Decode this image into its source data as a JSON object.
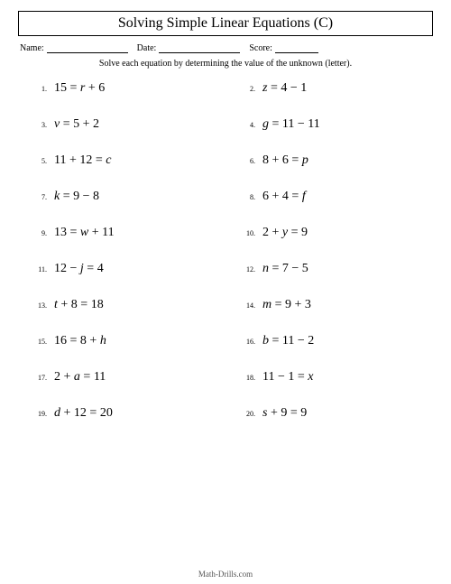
{
  "title": "Solving Simple Linear Equations (C)",
  "header": {
    "name_label": "Name:",
    "date_label": "Date:",
    "score_label": "Score:"
  },
  "instruction": "Solve each equation by determining the value of the unknown (letter).",
  "problems": [
    {
      "n": "1.",
      "lhs": "15",
      "rhs_var": "r",
      "rhs_rest": " + 6"
    },
    {
      "n": "2.",
      "lhs_var": "z",
      "rhs_rest": "4 − 1"
    },
    {
      "n": "3.",
      "lhs_var": "v",
      "rhs_rest": "5 + 2"
    },
    {
      "n": "4.",
      "lhs_var": "g",
      "rhs_rest": "11 − 11"
    },
    {
      "n": "5.",
      "lhs": "11 + 12",
      "rhs_var": "c"
    },
    {
      "n": "6.",
      "lhs": "8 + 6",
      "rhs_var": "p"
    },
    {
      "n": "7.",
      "lhs_var": "k",
      "rhs_rest": "9 − 8"
    },
    {
      "n": "8.",
      "lhs": "6 + 4",
      "rhs_var": "f"
    },
    {
      "n": "9.",
      "lhs": "13",
      "rhs_var": "w",
      "rhs_rest": " + 11"
    },
    {
      "n": "10.",
      "lhs": "2 + ",
      "lhs_var": "y",
      "rhs_rest": "9",
      "lhs_var_after": true
    },
    {
      "n": "11.",
      "lhs": "12 − ",
      "lhs_var": "j",
      "rhs_rest": "4",
      "lhs_var_after": true
    },
    {
      "n": "12.",
      "lhs_var": "n",
      "rhs_rest": "7 − 5"
    },
    {
      "n": "13.",
      "lhs_var": "t",
      "lhs_rest": " + 8",
      "rhs_rest": "18"
    },
    {
      "n": "14.",
      "lhs_var": "m",
      "rhs_rest": "9 + 3"
    },
    {
      "n": "15.",
      "lhs": "16",
      "rhs_rest": "8 + ",
      "rhs_var": "h",
      "rhs_var_after": true
    },
    {
      "n": "16.",
      "lhs_var": "b",
      "rhs_rest": "11 − 2"
    },
    {
      "n": "17.",
      "lhs": "2 + ",
      "lhs_var": "a",
      "rhs_rest": "11",
      "lhs_var_after": true
    },
    {
      "n": "18.",
      "lhs": "11 − 1",
      "rhs_var": "x"
    },
    {
      "n": "19.",
      "lhs_var": "d",
      "lhs_rest": " + 12",
      "rhs_rest": "20"
    },
    {
      "n": "20.",
      "lhs_var": "s",
      "lhs_rest": " + 9",
      "rhs_rest": "9"
    }
  ],
  "footer": "Math-Drills.com",
  "style": {
    "page_bg": "#ffffff",
    "text_color": "#000000",
    "title_fontsize": 16,
    "eq_fontsize": 14,
    "num_fontsize": 8,
    "instruction_fontsize": 10,
    "border_color": "#000000"
  }
}
